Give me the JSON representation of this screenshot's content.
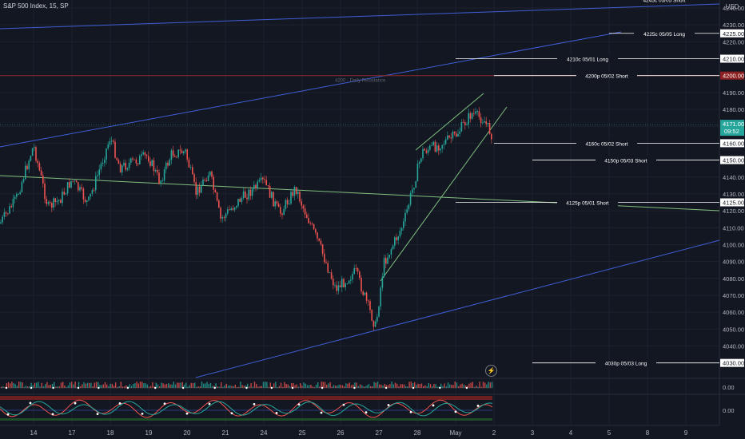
{
  "header": {
    "title": "S&P 500 Index, 15, SP"
  },
  "price_axis": {
    "currency_label": "USD",
    "ticks": [
      "4240.00",
      "4230.00",
      "4220.00",
      "4200.00",
      "4190.00",
      "4180.00",
      "4170.00",
      "4160.00",
      "4140.00",
      "4130.00",
      "4120.00",
      "4110.00",
      "4100.00",
      "4090.00",
      "4080.00",
      "4070.00",
      "4060.00",
      "4050.00",
      "4040.00"
    ],
    "highlight_boxes": [
      {
        "text": "4225.00",
        "value": 4225,
        "bg": "#ffffff",
        "fg": "#131722"
      },
      {
        "text": "4210.00",
        "value": 4210,
        "bg": "#ffffff",
        "fg": "#131722"
      },
      {
        "text": "4200.00",
        "value": 4200,
        "bg": "#8b1e1e",
        "fg": "#ffffff"
      },
      {
        "text": "4160.00",
        "value": 4160,
        "bg": "#ffffff",
        "fg": "#131722"
      },
      {
        "text": "4150.00",
        "value": 4150,
        "bg": "#ffffff",
        "fg": "#131722"
      },
      {
        "text": "4125.00",
        "value": 4125,
        "bg": "#ffffff",
        "fg": "#131722"
      },
      {
        "text": "4030.00",
        "value": 4030,
        "bg": "#ffffff",
        "fg": "#131722"
      }
    ],
    "last_price": {
      "price": "4171.00",
      "countdown": "09:52",
      "bg": "#26a69a",
      "value": 4171
    }
  },
  "indicator_axis": [
    "0.00",
    "0.00"
  ],
  "time_axis": [
    "14",
    "17",
    "18",
    "19",
    "20",
    "21",
    "24",
    "25",
    "26",
    "27",
    "28",
    "May",
    "2",
    "3",
    "4",
    "5",
    "8",
    "9"
  ],
  "chart_data": {
    "type": "candlestick",
    "y_range": [
      4030,
      4245
    ],
    "annotations": [
      {
        "label": "4245c 05/05 Short",
        "price": 4245
      },
      {
        "label": "4225c 05/05 Long",
        "price": 4225
      },
      {
        "label": "4210c 05/01 Long",
        "price": 4210
      },
      {
        "label": "4200p 05/02 Short",
        "price": 4200
      },
      {
        "label": "4160c 05/02 Short",
        "price": 4160
      },
      {
        "label": "4150p 05/03 Short",
        "price": 4150
      },
      {
        "label": "4125p 05/01 Short",
        "price": 4125
      },
      {
        "label": "4030p 05/03 Long",
        "price": 4030
      }
    ],
    "resistance_label": "4200 · Daily Resistance",
    "colors": {
      "up": "#26a69a",
      "down": "#ef5350",
      "trend": "#3f5fd8",
      "channel": "#7fbf7f",
      "resistance": "#8b2a2a"
    }
  }
}
